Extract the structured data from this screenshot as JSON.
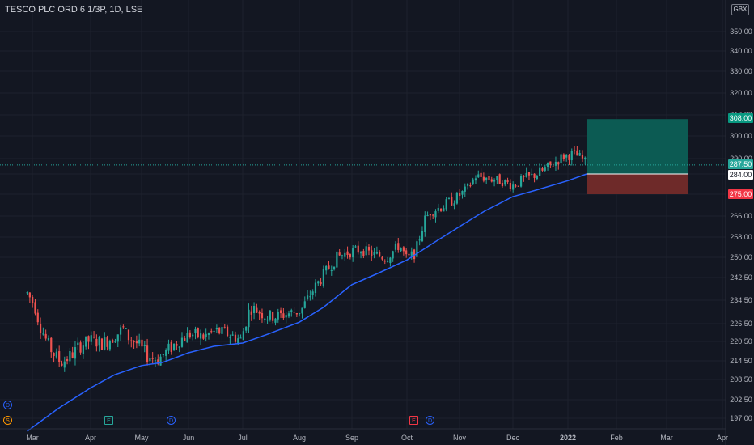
{
  "header": {
    "symbol_title": "TESCO PLC ORD 6 1/3P, 1D, LSE",
    "currency": "GBX"
  },
  "price_labels": {
    "target": "308.00",
    "current": "287.50",
    "entry": "284.00",
    "stop": "275.00"
  },
  "events": {
    "d1": "D",
    "s1": "S",
    "e1": "E",
    "d2": "D",
    "e2": "E",
    "d3": "D"
  },
  "colors": {
    "background": "#131722",
    "up": "#26a69a",
    "down": "#ef5350",
    "ma": "#2962ff",
    "profit_zone": "#0c5b53",
    "loss_zone": "#6e2a29",
    "grid": "#1e222d",
    "text": "#b2b5be"
  },
  "chart_data": {
    "type": "candlestick",
    "title": "TESCO PLC ORD 6 1/3P, 1D, LSE",
    "y_ticks": [
      197.0,
      202.5,
      208.5,
      214.5,
      220.5,
      226.5,
      234.5,
      242.5,
      250.0,
      258.0,
      266.0,
      275.0,
      284.0,
      290.0,
      300.0,
      310.0,
      320.0,
      330.0,
      340.0,
      350.0
    ],
    "x_ticks": [
      "Mar",
      "Apr",
      "May",
      "Jun",
      "Jul",
      "Aug",
      "Sep",
      "Oct",
      "Nov",
      "Dec",
      "2022",
      "Feb",
      "Mar",
      "Apr"
    ],
    "series": [
      {
        "name": "",
        "type": "ohlc_close_path",
        "points": [
          [
            "Feb 26",
            237
          ],
          [
            "Mar 2",
            233
          ],
          [
            "Mar 5",
            226
          ],
          [
            "Mar 9",
            220
          ],
          [
            "Mar 12",
            217
          ],
          [
            "Mar 16",
            214
          ],
          [
            "Mar 19",
            215
          ],
          [
            "Mar 23",
            217
          ],
          [
            "Mar 26",
            219
          ],
          [
            "Apr 1",
            221
          ],
          [
            "Apr 8",
            220
          ],
          [
            "Apr 15",
            222
          ],
          [
            "Apr 20",
            225
          ],
          [
            "Apr 23",
            222
          ],
          [
            "Apr 28",
            220
          ],
          [
            "May 5",
            216
          ],
          [
            "May 12",
            215
          ],
          [
            "May 19",
            218
          ],
          [
            "May 26",
            221
          ],
          [
            "Jun 2",
            223
          ],
          [
            "Jun 9",
            222
          ],
          [
            "Jun 16",
            224
          ],
          [
            "Jun 23",
            223
          ],
          [
            "Jun 30",
            221
          ],
          [
            "Jul 5",
            232
          ],
          [
            "Jul 9",
            231
          ],
          [
            "Jul 14",
            229
          ],
          [
            "Jul 20",
            229
          ],
          [
            "Jul 26",
            230
          ],
          [
            "Aug 2",
            231
          ],
          [
            "Aug 9",
            238
          ],
          [
            "Aug 16",
            244
          ],
          [
            "Aug 23",
            250
          ],
          [
            "Aug 30",
            252
          ],
          [
            "Sep 6",
            253
          ],
          [
            "Sep 13",
            251
          ],
          [
            "Sep 20",
            250
          ],
          [
            "Sep 27",
            255
          ],
          [
            "Oct 1",
            249
          ],
          [
            "Oct 6",
            252
          ],
          [
            "Oct 11",
            264
          ],
          [
            "Oct 15",
            268
          ],
          [
            "Oct 22",
            270
          ],
          [
            "Oct 29",
            273
          ],
          [
            "Nov 5",
            277
          ],
          [
            "Nov 10",
            283
          ],
          [
            "Nov 17",
            282
          ],
          [
            "Nov 24",
            281
          ],
          [
            "Dec 1",
            279
          ],
          [
            "Dec 8",
            282
          ],
          [
            "Dec 15",
            284
          ],
          [
            "Dec 22",
            287
          ],
          [
            "Dec 29",
            291
          ],
          [
            "Jan 5",
            292
          ],
          [
            "Jan 10",
            290
          ],
          [
            "Jan 13",
            287.5
          ]
        ]
      },
      {
        "name": "",
        "type": "moving_average",
        "points": [
          [
            "Feb 26",
            193
          ],
          [
            "Mar 15",
            200
          ],
          [
            "Apr 1",
            206
          ],
          [
            "Apr 15",
            210
          ],
          [
            "May 1",
            213
          ],
          [
            "May 15",
            214
          ],
          [
            "Jun 1",
            217
          ],
          [
            "Jun 15",
            219
          ],
          [
            "Jul 1",
            220
          ],
          [
            "Jul 15",
            223
          ],
          [
            "Aug 1",
            227
          ],
          [
            "Aug 15",
            232
          ],
          [
            "Sep 1",
            240
          ],
          [
            "Sep 15",
            244
          ],
          [
            "Oct 1",
            249
          ],
          [
            "Oct 15",
            255
          ],
          [
            "Nov 1",
            262
          ],
          [
            "Nov 15",
            268
          ],
          [
            "Dec 1",
            274
          ],
          [
            "Dec 15",
            277
          ],
          [
            "Jan 1",
            281
          ],
          [
            "Jan 13",
            284
          ]
        ]
      }
    ],
    "position": {
      "type": "long",
      "entry": 284.0,
      "target": 308.0,
      "stop": 275.0,
      "last_price": 287.5
    },
    "ylim": [
      194,
      356
    ],
    "grid": true,
    "legend": "none"
  }
}
